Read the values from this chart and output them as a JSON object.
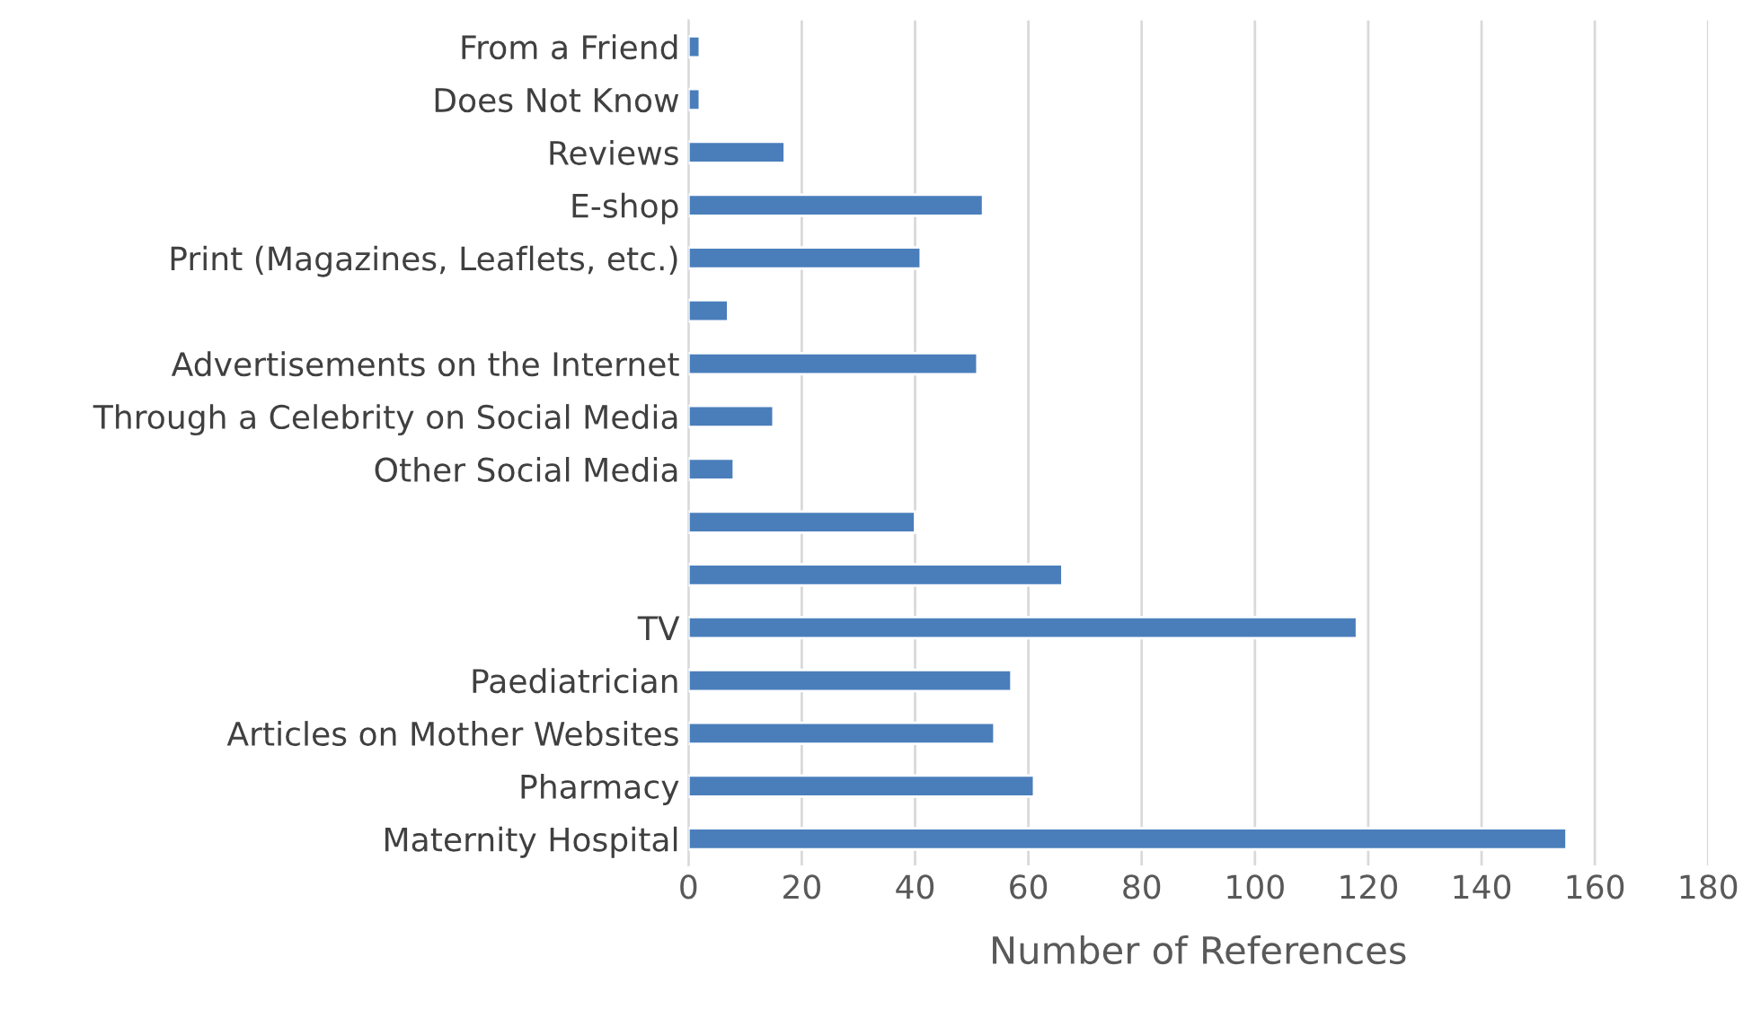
{
  "chart_data": {
    "type": "bar",
    "orientation": "horizontal",
    "xlabel": "Number of References",
    "categories": [
      "From a Friend",
      "Does Not Know",
      "Reviews",
      "E-shop",
      "Print (Magazines, Leaflets, etc.)",
      null,
      "Advertisements on the Internet",
      "Through a Celebrity on Social Media",
      "Other Social Media",
      null,
      null,
      "TV",
      "Paediatrician",
      "Articles on Mother Websites",
      "Pharmacy",
      "Maternity Hospital"
    ],
    "values": [
      2,
      2,
      17,
      52,
      41,
      7,
      51,
      15,
      8,
      40,
      66,
      118,
      57,
      54,
      61,
      155
    ],
    "color": "#4a7ebb",
    "xlim": [
      0,
      180
    ],
    "xticks": [
      0,
      20,
      40,
      60,
      80,
      100,
      120,
      140,
      160,
      180
    ],
    "grid": "x"
  }
}
